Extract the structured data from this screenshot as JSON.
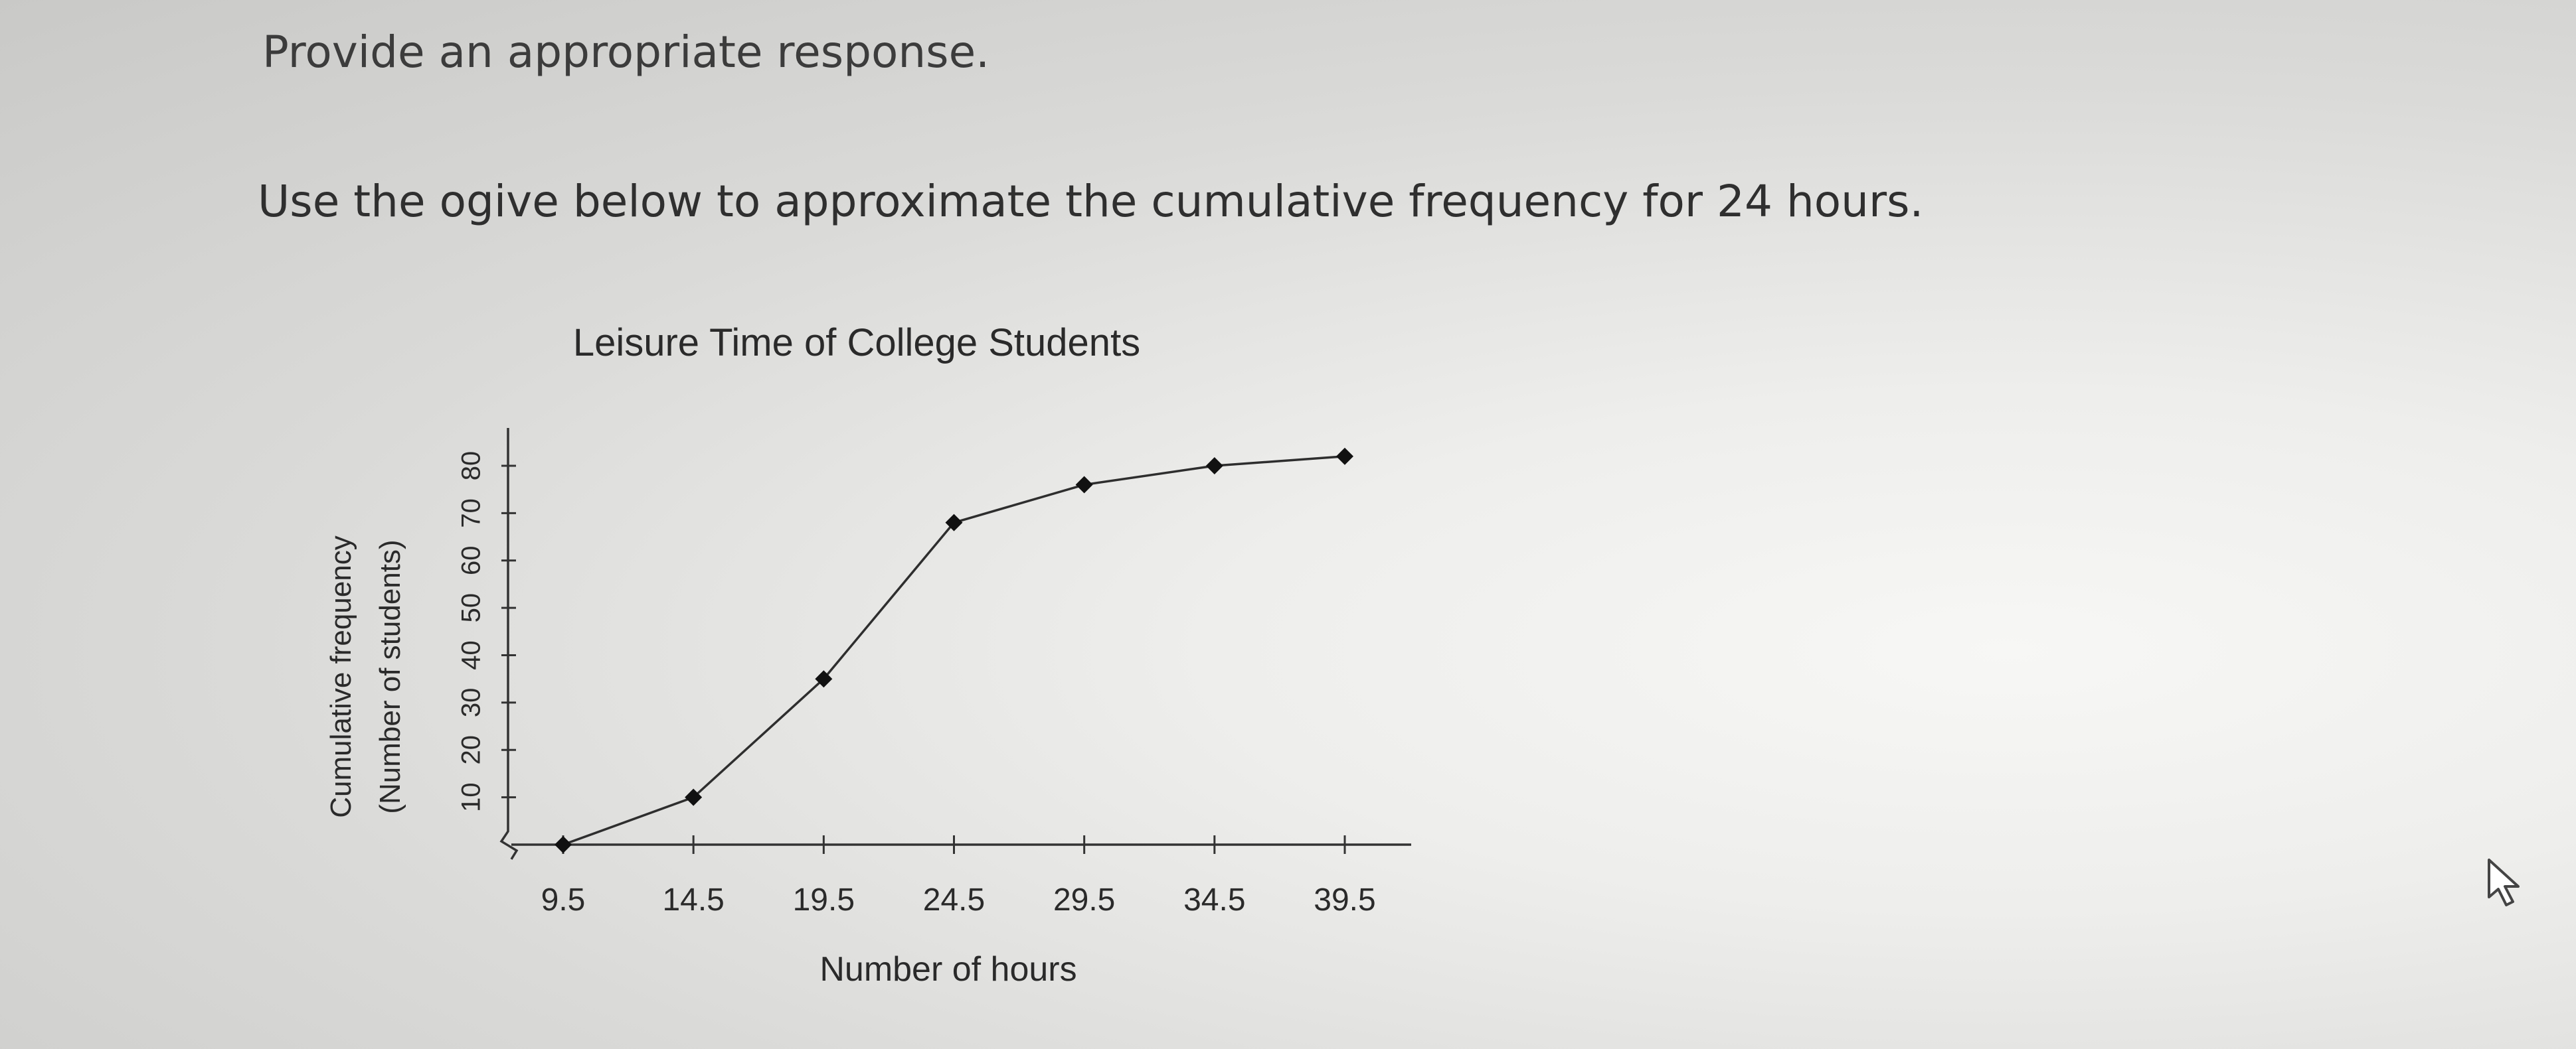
{
  "prompt": "Provide an appropriate response.",
  "question": "Use the ogive below to approximate the cumulative frequency for 24 hours.",
  "icons": [
    "mouse-cursor-icon"
  ],
  "chart_data": {
    "type": "line",
    "title": "Leisure Time of College Students",
    "xlabel": "Number of hours",
    "ylabel": [
      "Cumulative frequency",
      "(Number of students)"
    ],
    "x_ticks": [
      "9.5",
      "14.5",
      "19.5",
      "24.5",
      "29.5",
      "34.5",
      "39.5"
    ],
    "y_ticks": [
      "10",
      "20",
      "30",
      "40",
      "50",
      "60",
      "70",
      "80"
    ],
    "x": [
      9.5,
      14.5,
      19.5,
      24.5,
      29.5,
      34.5,
      39.5
    ],
    "y": [
      0,
      10,
      35,
      68,
      76,
      80,
      82
    ],
    "ylim": [
      0,
      85
    ],
    "axis_break": true,
    "grid": false
  }
}
